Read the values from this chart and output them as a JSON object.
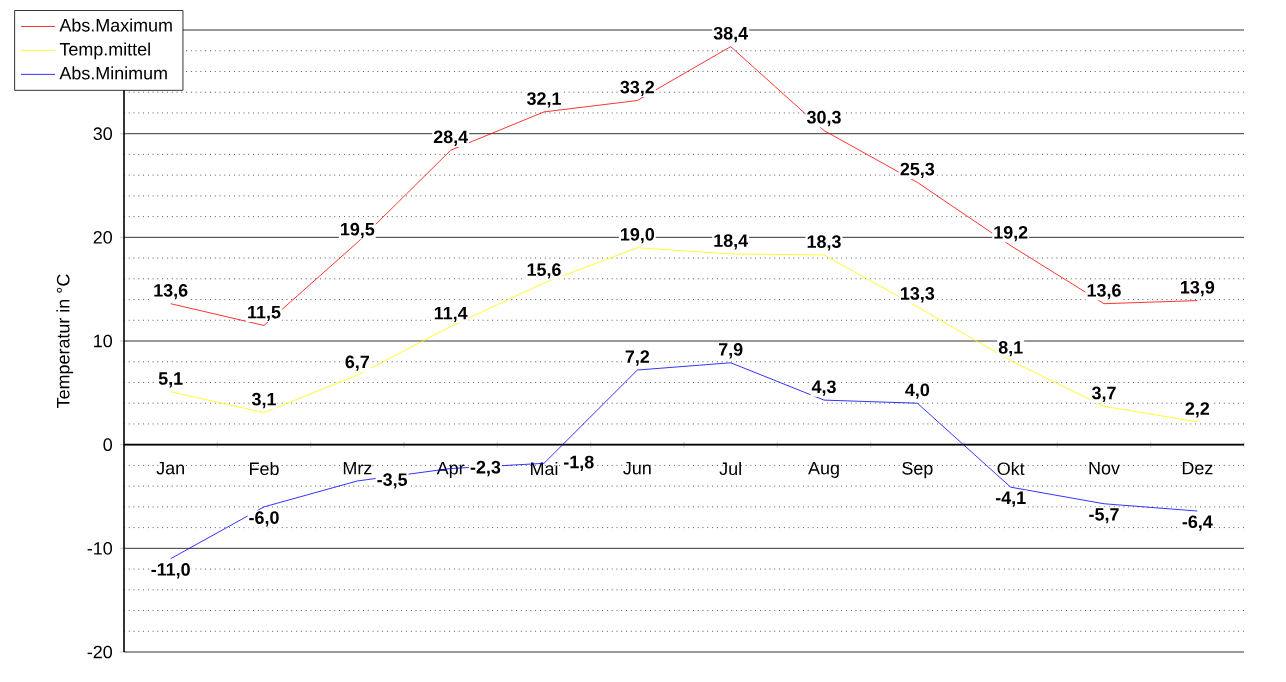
{
  "chart_data": {
    "type": "line",
    "ylabel": "Temperatur in °C",
    "categories": [
      "Jan",
      "Feb",
      "Mrz",
      "Apr",
      "Mai",
      "Jun",
      "Jul",
      "Aug",
      "Sep",
      "Okt",
      "Nov",
      "Dez"
    ],
    "series": [
      {
        "name": "Abs.Maximum",
        "color": "#ff0000",
        "values": [
          13.6,
          11.5,
          19.5,
          28.4,
          32.1,
          33.2,
          38.4,
          30.3,
          25.3,
          19.2,
          13.6,
          13.9
        ],
        "value_labels": [
          "13,6",
          "11,5",
          "19,5",
          "28,4",
          "32,1",
          "33,2",
          "38,4",
          "30,3",
          "25,3",
          "19,2",
          "13,6",
          "13,9"
        ]
      },
      {
        "name": "Temp.mittel",
        "color": "#ffff00",
        "values": [
          5.1,
          3.1,
          6.7,
          11.4,
          15.6,
          19.0,
          18.4,
          18.3,
          13.3,
          8.1,
          3.7,
          2.2
        ],
        "value_labels": [
          "5,1",
          "3,1",
          "6,7",
          "11,4",
          "15,6",
          "19,0",
          "18,4",
          "18,3",
          "13,3",
          "8,1",
          "3,7",
          "2,2"
        ]
      },
      {
        "name": "Abs.Minimum",
        "color": "#0000ff",
        "values": [
          -11.0,
          -6.0,
          -3.5,
          -2.3,
          -1.8,
          7.2,
          7.9,
          4.3,
          4.0,
          -4.1,
          -5.7,
          -6.4
        ],
        "value_labels": [
          "-11,0",
          "-6,0",
          "-3,5",
          "-2,3",
          "-1,8",
          "7,2",
          "7,9",
          "4,3",
          "4,0",
          "-4,1",
          "-5,7",
          "-6,4"
        ]
      }
    ],
    "ylim": [
      -20,
      40
    ],
    "yticks": [
      -20,
      -10,
      0,
      10,
      20,
      30,
      {
        "value": 40,
        "label": null
      }
    ],
    "grid": "y",
    "legend": "top left",
    "marker": "none",
    "line_style": "solid"
  }
}
